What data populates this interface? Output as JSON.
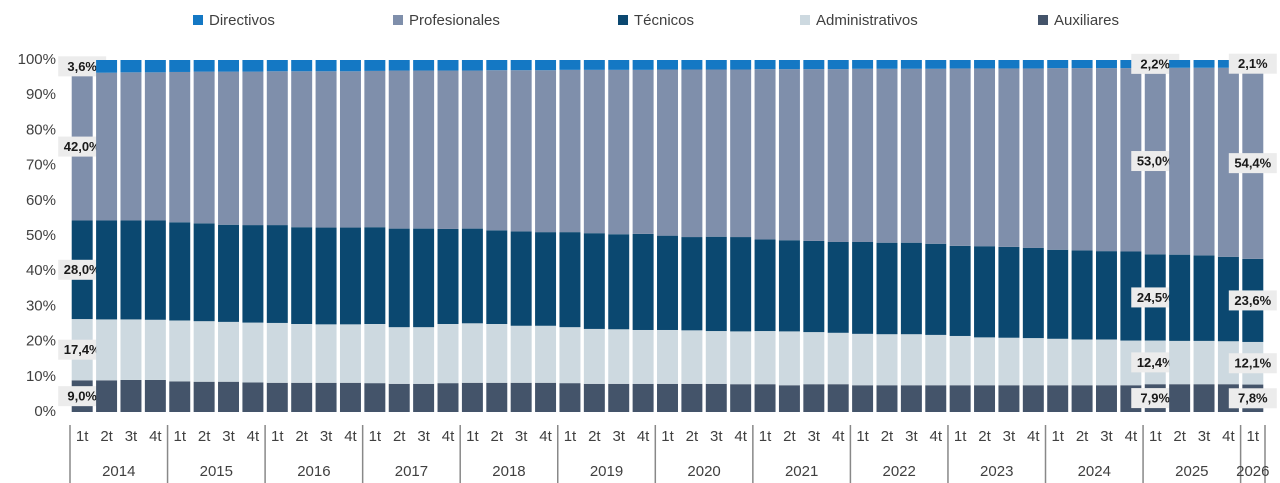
{
  "chart_data": {
    "type": "stacked_bar",
    "categories": [
      "1t",
      "2t",
      "3t",
      "4t",
      "1t",
      "2t",
      "3t",
      "4t",
      "1t",
      "2t",
      "3t",
      "4t",
      "1t",
      "2t",
      "3t",
      "4t",
      "1t",
      "2t",
      "3t",
      "4t",
      "1t",
      "2t",
      "3t",
      "4t",
      "1t",
      "2t",
      "3t",
      "4t",
      "1t",
      "2t",
      "3t",
      "4t",
      "1t",
      "2t",
      "3t",
      "4t",
      "1t",
      "2t",
      "3t",
      "4t",
      "1t",
      "2t",
      "3t",
      "4t",
      "1t",
      "2t",
      "3t",
      "4t",
      "1t"
    ],
    "years": [
      "2014",
      "2015",
      "2016",
      "2017",
      "2018",
      "2019",
      "2020",
      "2021",
      "2022",
      "2023",
      "2024",
      "2025",
      "2026"
    ],
    "ylim": [
      0,
      100
    ],
    "yticks": [
      {
        "value": 0,
        "label": "0%"
      },
      {
        "value": 10,
        "label": "10%"
      },
      {
        "value": 20,
        "label": "20%"
      },
      {
        "value": 30,
        "label": "30%"
      },
      {
        "value": 40,
        "label": "40%"
      },
      {
        "value": 50,
        "label": "50%"
      },
      {
        "value": 60,
        "label": "60%"
      },
      {
        "value": 70,
        "label": "70%"
      },
      {
        "value": 80,
        "label": "80%"
      },
      {
        "value": 90,
        "label": "90%"
      },
      {
        "value": 100,
        "label": "100%"
      }
    ],
    "legend_position": "top",
    "series": [
      {
        "name": "Directivos",
        "color": "#1478c4",
        "values": [
          3.6,
          3.6,
          3.5,
          3.5,
          3.4,
          3.3,
          3.3,
          3.3,
          3.2,
          3.2,
          3.2,
          3.2,
          3.1,
          3.0,
          3.0,
          3.0,
          3.0,
          2.9,
          2.9,
          2.9,
          2.8,
          2.8,
          2.8,
          2.8,
          2.7,
          2.7,
          2.7,
          2.7,
          2.6,
          2.6,
          2.6,
          2.6,
          2.5,
          2.5,
          2.5,
          2.5,
          2.4,
          2.4,
          2.4,
          2.4,
          2.3,
          2.3,
          2.3,
          2.3,
          2.2,
          2.2,
          2.2,
          2.2,
          2.1
        ],
        "value_labels": [
          "3,6%",
          null,
          null,
          null,
          null,
          null,
          null,
          null,
          null,
          null,
          null,
          null,
          null,
          null,
          null,
          null,
          null,
          null,
          null,
          null,
          null,
          null,
          null,
          null,
          null,
          null,
          null,
          null,
          null,
          null,
          null,
          null,
          null,
          null,
          null,
          null,
          null,
          null,
          null,
          null,
          null,
          null,
          null,
          null,
          "2,2%",
          null,
          null,
          null,
          "2,1%"
        ]
      },
      {
        "name": "Profesionales",
        "color": "#7f8fab",
        "values": [
          42.0,
          42.0,
          42.1,
          42.1,
          42.7,
          43.1,
          43.5,
          43.6,
          43.7,
          44.3,
          44.4,
          44.4,
          44.4,
          44.9,
          44.9,
          45.0,
          44.9,
          45.5,
          45.8,
          46.0,
          46.1,
          46.4,
          46.7,
          46.6,
          47.2,
          47.6,
          47.5,
          47.6,
          48.4,
          48.6,
          48.8,
          49.1,
          49.2,
          49.4,
          49.4,
          49.7,
          50.4,
          50.5,
          50.7,
          51.0,
          51.6,
          51.8,
          52.0,
          52.1,
          53.0,
          53.1,
          53.3,
          53.7,
          54.4
        ],
        "value_labels": [
          "42,0%",
          null,
          null,
          null,
          null,
          null,
          null,
          null,
          null,
          null,
          null,
          null,
          null,
          null,
          null,
          null,
          null,
          null,
          null,
          null,
          null,
          null,
          null,
          null,
          null,
          null,
          null,
          null,
          null,
          null,
          null,
          null,
          null,
          null,
          null,
          null,
          null,
          null,
          null,
          null,
          null,
          null,
          null,
          null,
          "53,0%",
          null,
          null,
          null,
          "54,4%"
        ]
      },
      {
        "name": "Técnicos",
        "color": "#0b4870",
        "values": [
          28.0,
          28.1,
          28.1,
          28.2,
          27.9,
          27.8,
          27.6,
          27.7,
          27.8,
          27.5,
          27.5,
          27.5,
          27.5,
          28.0,
          28.0,
          27.0,
          26.9,
          26.6,
          26.8,
          26.6,
          27.0,
          27.2,
          27.0,
          27.3,
          26.8,
          26.5,
          26.8,
          26.8,
          26.0,
          25.9,
          25.9,
          25.8,
          26.1,
          26.0,
          26.0,
          25.9,
          25.6,
          25.9,
          25.8,
          25.6,
          25.3,
          25.3,
          25.1,
          25.3,
          24.5,
          24.5,
          24.3,
          24.0,
          23.6
        ],
        "value_labels": [
          "28,0%",
          null,
          null,
          null,
          null,
          null,
          null,
          null,
          null,
          null,
          null,
          null,
          null,
          null,
          null,
          null,
          null,
          null,
          null,
          null,
          null,
          null,
          null,
          null,
          null,
          null,
          null,
          null,
          null,
          null,
          null,
          null,
          null,
          null,
          null,
          null,
          null,
          null,
          null,
          null,
          null,
          null,
          null,
          null,
          "24,5%",
          null,
          null,
          null,
          "23,6%"
        ]
      },
      {
        "name": "Administrativos",
        "color": "#cdd9e0",
        "values": [
          17.4,
          17.3,
          17.2,
          17.1,
          17.3,
          17.2,
          17.0,
          17.0,
          17.0,
          16.7,
          16.6,
          16.6,
          16.8,
          16.1,
          16.1,
          16.8,
          16.9,
          16.7,
          16.2,
          16.2,
          15.9,
          15.6,
          15.5,
          15.3,
          15.3,
          15.2,
          15.0,
          15.0,
          15.1,
          15.3,
          14.8,
          14.6,
          14.6,
          14.5,
          14.5,
          14.3,
          14.0,
          13.6,
          13.5,
          13.4,
          13.2,
          13.0,
          13.0,
          12.7,
          12.4,
          12.3,
          12.3,
          12.2,
          12.1
        ],
        "value_labels": [
          "17,4%",
          null,
          null,
          null,
          null,
          null,
          null,
          null,
          null,
          null,
          null,
          null,
          null,
          null,
          null,
          null,
          null,
          null,
          null,
          null,
          null,
          null,
          null,
          null,
          null,
          null,
          null,
          null,
          null,
          null,
          null,
          null,
          null,
          null,
          null,
          null,
          null,
          null,
          null,
          null,
          null,
          null,
          null,
          null,
          "12,4%",
          null,
          null,
          null,
          "12,1%"
        ]
      },
      {
        "name": "Auxiliares",
        "color": "#44546a",
        "values": [
          9.0,
          9.0,
          9.1,
          9.1,
          8.7,
          8.6,
          8.6,
          8.4,
          8.3,
          8.3,
          8.3,
          8.3,
          8.2,
          8.0,
          8.0,
          8.2,
          8.3,
          8.3,
          8.3,
          8.3,
          8.2,
          8.0,
          8.0,
          8.0,
          8.0,
          8.0,
          8.0,
          7.9,
          7.9,
          7.6,
          7.9,
          7.9,
          7.6,
          7.6,
          7.6,
          7.6,
          7.6,
          7.6,
          7.6,
          7.6,
          7.6,
          7.6,
          7.6,
          7.6,
          7.9,
          7.9,
          7.9,
          7.9,
          7.8
        ],
        "value_labels": [
          "9,0%",
          null,
          null,
          null,
          null,
          null,
          null,
          null,
          null,
          null,
          null,
          null,
          null,
          null,
          null,
          null,
          null,
          null,
          null,
          null,
          null,
          null,
          null,
          null,
          null,
          null,
          null,
          null,
          null,
          null,
          null,
          null,
          null,
          null,
          null,
          null,
          null,
          null,
          null,
          null,
          null,
          null,
          null,
          null,
          "7,9%",
          null,
          null,
          null,
          "7,8%"
        ]
      }
    ]
  }
}
